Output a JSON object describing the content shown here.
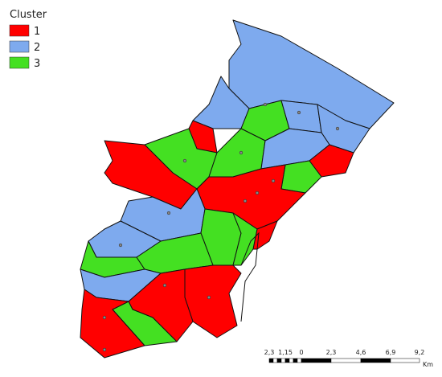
{
  "legend": {
    "title": "Cluster",
    "items": [
      {
        "label": "1",
        "color": "#ff0000"
      },
      {
        "label": "2",
        "color": "#7eaaee"
      },
      {
        "label": "3",
        "color": "#44e022"
      }
    ]
  },
  "scale_bar": {
    "labels": [
      "2,3",
      "1,15",
      "0",
      "2,3",
      "4,6",
      "6,9",
      "9,2"
    ],
    "unit": "Km"
  }
}
